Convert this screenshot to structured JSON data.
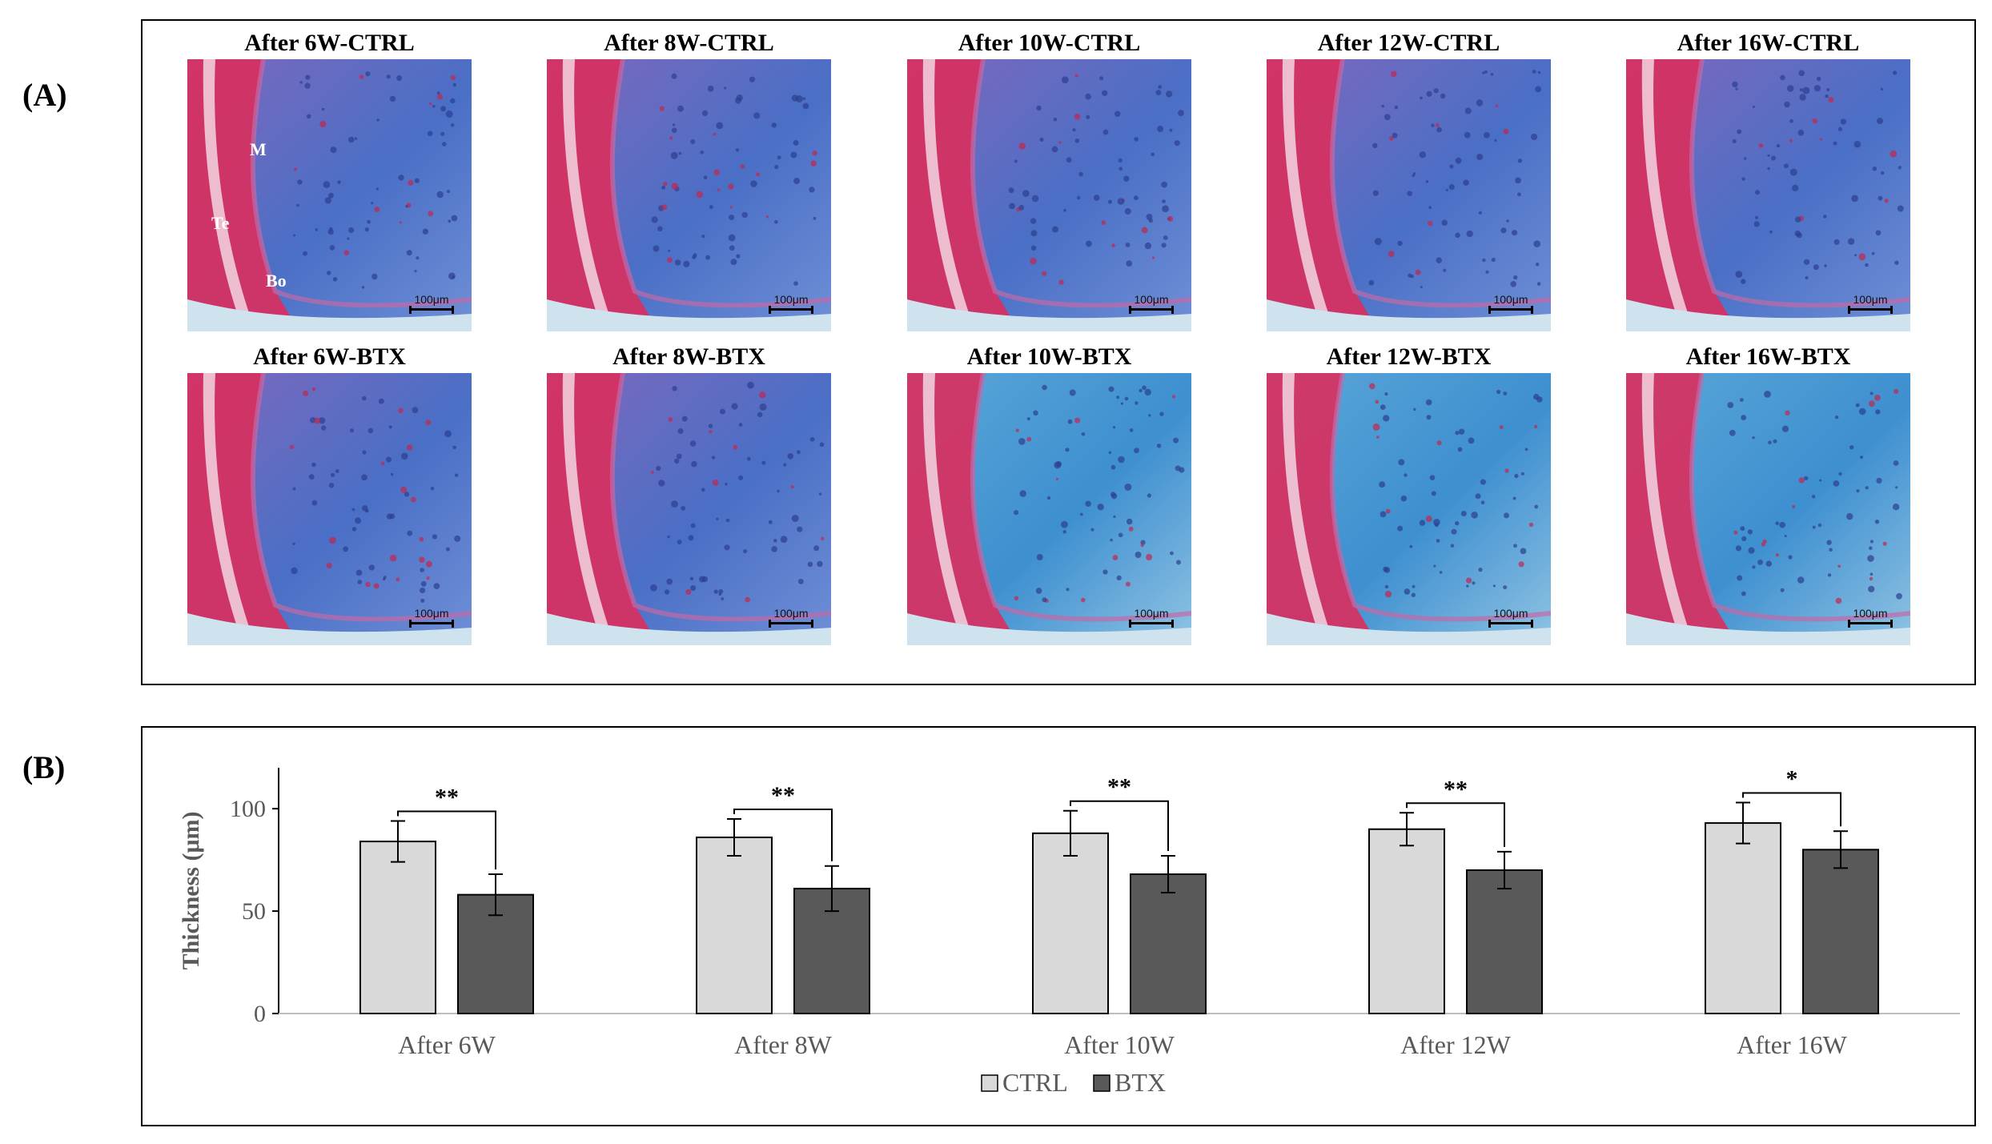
{
  "panel_labels": {
    "a": "(A)",
    "b": "(B)"
  },
  "images": {
    "ctrl": [
      {
        "caption": "After  6W-CTRL",
        "scale": "100μm",
        "labels": [
          "M",
          "Te",
          "Bo"
        ]
      },
      {
        "caption": "After  8W-CTRL",
        "scale": "100μm"
      },
      {
        "caption": "After  10W-CTRL",
        "scale": "100μm"
      },
      {
        "caption": "After  12W-CTRL",
        "scale": "100μm"
      },
      {
        "caption": "After  16W-CTRL",
        "scale": "100μm"
      }
    ],
    "btx": [
      {
        "caption": "After  6W-BTX",
        "scale": "100μm"
      },
      {
        "caption": "After  8W-BTX",
        "scale": "100μm"
      },
      {
        "caption": "After  10W-BTX",
        "scale": "100μm"
      },
      {
        "caption": "After  12W-BTX",
        "scale": "100μm"
      },
      {
        "caption": "After  16W-BTX",
        "scale": "100μm"
      }
    ]
  },
  "chart_data": {
    "type": "bar",
    "title": "",
    "xlabel": "",
    "ylabel": "Thickness (μm)",
    "ylim": [
      0,
      120
    ],
    "yticks": [
      0,
      50,
      100
    ],
    "categories": [
      "After 6W",
      "After 8W",
      "After 10W",
      "After 12W",
      "After 16W"
    ],
    "series": [
      {
        "name": "CTRL",
        "color": "#d9d9d9",
        "values": [
          84,
          86,
          88,
          90,
          93
        ],
        "errors": [
          10,
          9,
          11,
          8,
          10
        ]
      },
      {
        "name": "BTX",
        "color": "#595959",
        "values": [
          58,
          61,
          68,
          70,
          80
        ],
        "errors": [
          10,
          11,
          9,
          9,
          9
        ]
      }
    ],
    "significance": [
      "**",
      "**",
      "**",
      "**",
      "*"
    ],
    "legend_position": "bottom",
    "grid": false
  },
  "colors": {
    "muscle": "#d8305f",
    "cartilage_blue": "#3f6fc4",
    "cartilage_purple": "#8a62b8",
    "background_tissue": "#d6e4ef"
  }
}
